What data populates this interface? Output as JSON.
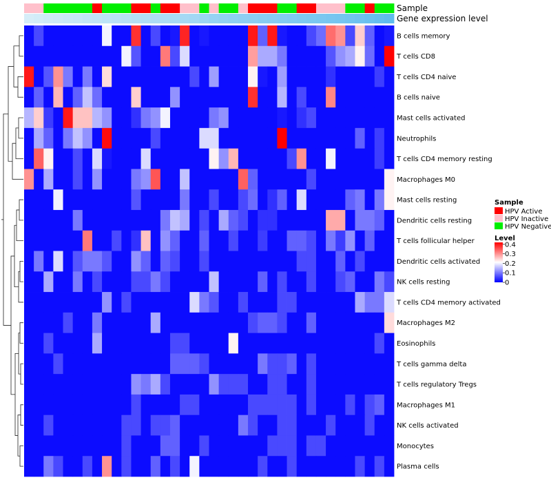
{
  "chart_data": {
    "type": "heatmap",
    "title": "",
    "annotation_labels": {
      "sample": "Sample",
      "gene_expression": "Gene expression level"
    },
    "rows": [
      "B cells memory",
      "T cells CD8",
      "T cells CD4 naive",
      "B cells naive",
      "Mast cells activated",
      "Neutrophils",
      "T cells CD4 memory resting",
      "Macrophages M0",
      "Mast cells resting",
      "Dendritic cells resting",
      "T cells follicular helper",
      "Dendritic cells activated",
      "NK cells resting",
      "T cells CD4 memory activated",
      "Macrophages M2",
      "Eosinophils",
      "T cells gamma delta",
      "T cells regulatory  Tregs",
      "Macrophages M1",
      "NK cells activated",
      "Monocytes",
      "Plasma cells"
    ],
    "sample_groups": [
      "Inactive",
      "Inactive",
      "Negative",
      "Negative",
      "Negative",
      "Negative",
      "Negative",
      "Active",
      "Negative",
      "Negative",
      "Negative",
      "Active",
      "Active",
      "Negative",
      "Active",
      "Active",
      "Inactive",
      "Inactive",
      "Negative",
      "Inactive",
      "Negative",
      "Negative",
      "Inactive",
      "Active",
      "Active",
      "Active",
      "Negative",
      "Negative",
      "Active",
      "Active",
      "Inactive",
      "Inactive",
      "Inactive",
      "Negative",
      "Negative",
      "Active",
      "Negative",
      "Negative"
    ],
    "gene_expression": [
      0.02,
      0.05,
      0.08,
      0.1,
      0.13,
      0.15,
      0.18,
      0.2,
      0.23,
      0.25,
      0.27,
      0.3,
      0.32,
      0.35,
      0.37,
      0.4,
      0.42,
      0.45,
      0.5,
      0.55,
      0.58,
      0.6,
      0.62,
      0.64,
      0.66,
      0.68,
      0.7,
      0.72,
      0.74,
      0.76,
      0.78,
      0.8,
      0.82,
      0.85,
      0.88,
      0.92,
      0.96,
      1.0
    ],
    "values": [
      [
        0.01,
        0.06,
        0.01,
        0.01,
        0.01,
        0.01,
        0.01,
        0.01,
        0.2,
        0.01,
        0.01,
        0.38,
        0.01,
        0.06,
        0.01,
        0.02,
        0.39,
        0.01,
        0.02,
        0.01,
        0.01,
        0.01,
        0.01,
        0.4,
        0.08,
        0.4,
        0.02,
        0.01,
        0.01,
        0.06,
        0.09,
        0.33,
        0.3,
        0.06,
        0.25,
        0.08,
        0.01,
        0.02
      ],
      [
        0.01,
        0.01,
        0.01,
        0.01,
        0.01,
        0.01,
        0.01,
        0.01,
        0.01,
        0.01,
        0.2,
        0.07,
        0.01,
        0.01,
        0.32,
        0.06,
        0.18,
        0.01,
        0.01,
        0.01,
        0.01,
        0.01,
        0.01,
        0.29,
        0.14,
        0.14,
        0.1,
        0.01,
        0.01,
        0.01,
        0.01,
        0.07,
        0.12,
        0.14,
        0.22,
        0.09,
        0.01,
        0.42
      ],
      [
        0.4,
        0.01,
        0.07,
        0.3,
        0.1,
        0.01,
        0.1,
        0.01,
        0.24,
        0.01,
        0.01,
        0.01,
        0.01,
        0.01,
        0.01,
        0.01,
        0.01,
        0.06,
        0.01,
        0.13,
        0.01,
        0.01,
        0.01,
        0.22,
        0.02,
        0.01,
        0.13,
        0.01,
        0.01,
        0.01,
        0.01,
        0.04,
        0.01,
        0.01,
        0.01,
        0.01,
        0.05,
        0.01
      ],
      [
        0.01,
        0.08,
        0.01,
        0.27,
        0.01,
        0.08,
        0.16,
        0.09,
        0.01,
        0.01,
        0.01,
        0.25,
        0.01,
        0.01,
        0.01,
        0.12,
        0.01,
        0.01,
        0.01,
        0.01,
        0.01,
        0.01,
        0.01,
        0.38,
        0.01,
        0.01,
        0.15,
        0.01,
        0.06,
        0.01,
        0.01,
        0.31,
        0.01,
        0.01,
        0.01,
        0.01,
        0.01,
        0.01
      ],
      [
        0.15,
        0.25,
        0.05,
        0.01,
        0.4,
        0.26,
        0.26,
        0.15,
        0.12,
        0.01,
        0.01,
        0.04,
        0.1,
        0.12,
        0.2,
        0.01,
        0.01,
        0.01,
        0.01,
        0.1,
        0.12,
        0.01,
        0.01,
        0.01,
        0.01,
        0.01,
        0.02,
        0.01,
        0.04,
        0.06,
        0.01,
        0.01,
        0.01,
        0.01,
        0.01,
        0.01,
        0.01,
        0.01
      ],
      [
        0.01,
        0.14,
        0.08,
        0.01,
        0.1,
        0.16,
        0.12,
        0.01,
        0.41,
        0.01,
        0.01,
        0.01,
        0.01,
        0.06,
        0.01,
        0.01,
        0.01,
        0.01,
        0.18,
        0.18,
        0.01,
        0.01,
        0.01,
        0.01,
        0.01,
        0.01,
        0.42,
        0.01,
        0.01,
        0.01,
        0.01,
        0.01,
        0.01,
        0.01,
        0.08,
        0.01,
        0.05,
        0.01
      ],
      [
        0.01,
        0.34,
        0.22,
        0.01,
        0.01,
        0.06,
        0.01,
        0.18,
        0.02,
        0.01,
        0.01,
        0.01,
        0.18,
        0.01,
        0.01,
        0.01,
        0.01,
        0.01,
        0.01,
        0.22,
        0.12,
        0.27,
        0.01,
        0.01,
        0.01,
        0.01,
        0.01,
        0.06,
        0.3,
        0.01,
        0.01,
        0.2,
        0.01,
        0.01,
        0.01,
        0.01,
        0.05,
        0.01
      ],
      [
        0.3,
        0.01,
        0.14,
        0.01,
        0.01,
        0.06,
        0.01,
        0.12,
        0.01,
        0.01,
        0.01,
        0.1,
        0.12,
        0.35,
        0.01,
        0.01,
        0.16,
        0.01,
        0.01,
        0.01,
        0.01,
        0.01,
        0.34,
        0.08,
        0.01,
        0.01,
        0.01,
        0.01,
        0.01,
        0.06,
        0.01,
        0.01,
        0.01,
        0.01,
        0.01,
        0.01,
        0.01,
        0.22
      ],
      [
        0.01,
        0.01,
        0.01,
        0.2,
        0.01,
        0.01,
        0.01,
        0.01,
        0.01,
        0.01,
        0.01,
        0.07,
        0.01,
        0.01,
        0.01,
        0.01,
        0.1,
        0.01,
        0.01,
        0.06,
        0.01,
        0.01,
        0.06,
        0.09,
        0.01,
        0.04,
        0.08,
        0.01,
        0.18,
        0.01,
        0.01,
        0.01,
        0.01,
        0.08,
        0.1,
        0.01,
        0.1,
        0.22
      ],
      [
        0.01,
        0.01,
        0.01,
        0.01,
        0.01,
        0.1,
        0.01,
        0.01,
        0.01,
        0.01,
        0.01,
        0.01,
        0.01,
        0.01,
        0.1,
        0.16,
        0.14,
        0.01,
        0.06,
        0.01,
        0.14,
        0.08,
        0.06,
        0.01,
        0.04,
        0.04,
        0.01,
        0.01,
        0.01,
        0.01,
        0.01,
        0.28,
        0.28,
        0.01,
        0.1,
        0.1,
        0.08,
        0.01
      ],
      [
        0.01,
        0.01,
        0.01,
        0.01,
        0.01,
        0.01,
        0.32,
        0.01,
        0.01,
        0.06,
        0.01,
        0.04,
        0.26,
        0.01,
        0.12,
        0.08,
        0.01,
        0.01,
        0.08,
        0.01,
        0.01,
        0.06,
        0.01,
        0.01,
        0.05,
        0.01,
        0.01,
        0.08,
        0.08,
        0.06,
        0.01,
        0.1,
        0.05,
        0.12,
        0.01,
        0.08,
        0.01,
        0.01
      ],
      [
        0.01,
        0.1,
        0.01,
        0.18,
        0.01,
        0.07,
        0.1,
        0.1,
        0.07,
        0.01,
        0.01,
        0.12,
        0.08,
        0.01,
        0.08,
        0.06,
        0.01,
        0.01,
        0.06,
        0.01,
        0.01,
        0.01,
        0.01,
        0.01,
        0.01,
        0.01,
        0.01,
        0.01,
        0.06,
        0.06,
        0.01,
        0.01,
        0.08,
        0.01,
        0.06,
        0.01,
        0.01,
        0.01
      ],
      [
        0.01,
        0.01,
        0.14,
        0.01,
        0.01,
        0.1,
        0.01,
        0.06,
        0.01,
        0.01,
        0.01,
        0.06,
        0.06,
        0.1,
        0.06,
        0.01,
        0.01,
        0.01,
        0.01,
        0.16,
        0.01,
        0.01,
        0.01,
        0.01,
        0.08,
        0.01,
        0.06,
        0.01,
        0.01,
        0.06,
        0.01,
        0.01,
        0.06,
        0.08,
        0.01,
        0.01,
        0.1,
        0.06
      ],
      [
        0.01,
        0.01,
        0.01,
        0.01,
        0.01,
        0.01,
        0.01,
        0.01,
        0.12,
        0.01,
        0.06,
        0.01,
        0.01,
        0.01,
        0.01,
        0.01,
        0.01,
        0.18,
        0.1,
        0.07,
        0.01,
        0.01,
        0.06,
        0.01,
        0.01,
        0.01,
        0.06,
        0.06,
        0.01,
        0.01,
        0.01,
        0.01,
        0.01,
        0.01,
        0.14,
        0.1,
        0.1,
        0.18
      ],
      [
        0.01,
        0.01,
        0.01,
        0.01,
        0.06,
        0.01,
        0.01,
        0.1,
        0.01,
        0.01,
        0.01,
        0.01,
        0.01,
        0.14,
        0.01,
        0.01,
        0.01,
        0.01,
        0.01,
        0.01,
        0.01,
        0.01,
        0.01,
        0.06,
        0.08,
        0.08,
        0.06,
        0.01,
        0.01,
        0.08,
        0.01,
        0.01,
        0.01,
        0.01,
        0.01,
        0.01,
        0.01,
        0.24
      ],
      [
        0.01,
        0.01,
        0.06,
        0.01,
        0.01,
        0.01,
        0.01,
        0.14,
        0.01,
        0.01,
        0.01,
        0.01,
        0.01,
        0.01,
        0.01,
        0.06,
        0.06,
        0.01,
        0.01,
        0.01,
        0.01,
        0.22,
        0.01,
        0.01,
        0.01,
        0.01,
        0.01,
        0.01,
        0.01,
        0.01,
        0.01,
        0.01,
        0.01,
        0.01,
        0.01,
        0.01,
        0.06,
        0.01
      ],
      [
        0.01,
        0.01,
        0.01,
        0.06,
        0.01,
        0.01,
        0.01,
        0.01,
        0.01,
        0.01,
        0.01,
        0.01,
        0.01,
        0.01,
        0.01,
        0.08,
        0.08,
        0.08,
        0.06,
        0.01,
        0.01,
        0.01,
        0.01,
        0.01,
        0.1,
        0.06,
        0.06,
        0.08,
        0.01,
        0.06,
        0.01,
        0.01,
        0.01,
        0.01,
        0.01,
        0.01,
        0.01,
        0.01
      ],
      [
        0.01,
        0.01,
        0.01,
        0.01,
        0.01,
        0.01,
        0.01,
        0.01,
        0.01,
        0.01,
        0.01,
        0.12,
        0.1,
        0.14,
        0.06,
        0.01,
        0.01,
        0.01,
        0.01,
        0.12,
        0.06,
        0.06,
        0.06,
        0.01,
        0.01,
        0.06,
        0.06,
        0.01,
        0.01,
        0.06,
        0.01,
        0.01,
        0.01,
        0.01,
        0.01,
        0.01,
        0.01,
        0.01
      ],
      [
        0.01,
        0.01,
        0.01,
        0.01,
        0.01,
        0.01,
        0.01,
        0.01,
        0.01,
        0.01,
        0.01,
        0.06,
        0.01,
        0.01,
        0.01,
        0.01,
        0.06,
        0.06,
        0.01,
        0.01,
        0.01,
        0.01,
        0.01,
        0.06,
        0.06,
        0.06,
        0.06,
        0.06,
        0.01,
        0.06,
        0.01,
        0.01,
        0.01,
        0.06,
        0.01,
        0.06,
        0.08,
        0.01
      ],
      [
        0.01,
        0.01,
        0.06,
        0.01,
        0.01,
        0.01,
        0.01,
        0.01,
        0.01,
        0.01,
        0.06,
        0.06,
        0.01,
        0.06,
        0.06,
        0.08,
        0.01,
        0.01,
        0.01,
        0.01,
        0.01,
        0.01,
        0.1,
        0.06,
        0.01,
        0.01,
        0.06,
        0.06,
        0.01,
        0.01,
        0.01,
        0.06,
        0.01,
        0.01,
        0.01,
        0.06,
        0.01,
        0.01
      ],
      [
        0.01,
        0.01,
        0.01,
        0.01,
        0.01,
        0.01,
        0.01,
        0.01,
        0.01,
        0.01,
        0.06,
        0.01,
        0.01,
        0.01,
        0.08,
        0.08,
        0.01,
        0.01,
        0.06,
        0.01,
        0.01,
        0.01,
        0.01,
        0.01,
        0.01,
        0.06,
        0.06,
        0.06,
        0.01,
        0.06,
        0.06,
        0.01,
        0.01,
        0.01,
        0.01,
        0.01,
        0.01,
        0.01
      ],
      [
        0.01,
        0.01,
        0.1,
        0.06,
        0.01,
        0.01,
        0.06,
        0.01,
        0.3,
        0.01,
        0.06,
        0.01,
        0.01,
        0.08,
        0.01,
        0.06,
        0.01,
        0.2,
        0.01,
        0.01,
        0.01,
        0.01,
        0.01,
        0.01,
        0.06,
        0.01,
        0.01,
        0.06,
        0.01,
        0.01,
        0.01,
        0.01,
        0.01,
        0.01,
        0.06,
        0.01,
        0.06,
        0.01
      ]
    ],
    "legend": {
      "sample_title": "Sample",
      "sample_entries": [
        {
          "label": "HPV Active",
          "color": "#ff0000"
        },
        {
          "label": "HPV Inactive",
          "color": "#ffc0cb"
        },
        {
          "label": "HPV Negative",
          "color": "#00ee00"
        }
      ],
      "level_title": "Level",
      "level_ticks": [
        "0.4",
        "0.3",
        "0.2",
        "0.1",
        "0"
      ],
      "level_range": [
        0,
        0.42
      ]
    },
    "colors": {
      "low": "#0000ff",
      "mid": "#ffffff",
      "high": "#ff0000",
      "gene_light": "#d8eef8",
      "gene_dark": "#5fbcee"
    }
  }
}
